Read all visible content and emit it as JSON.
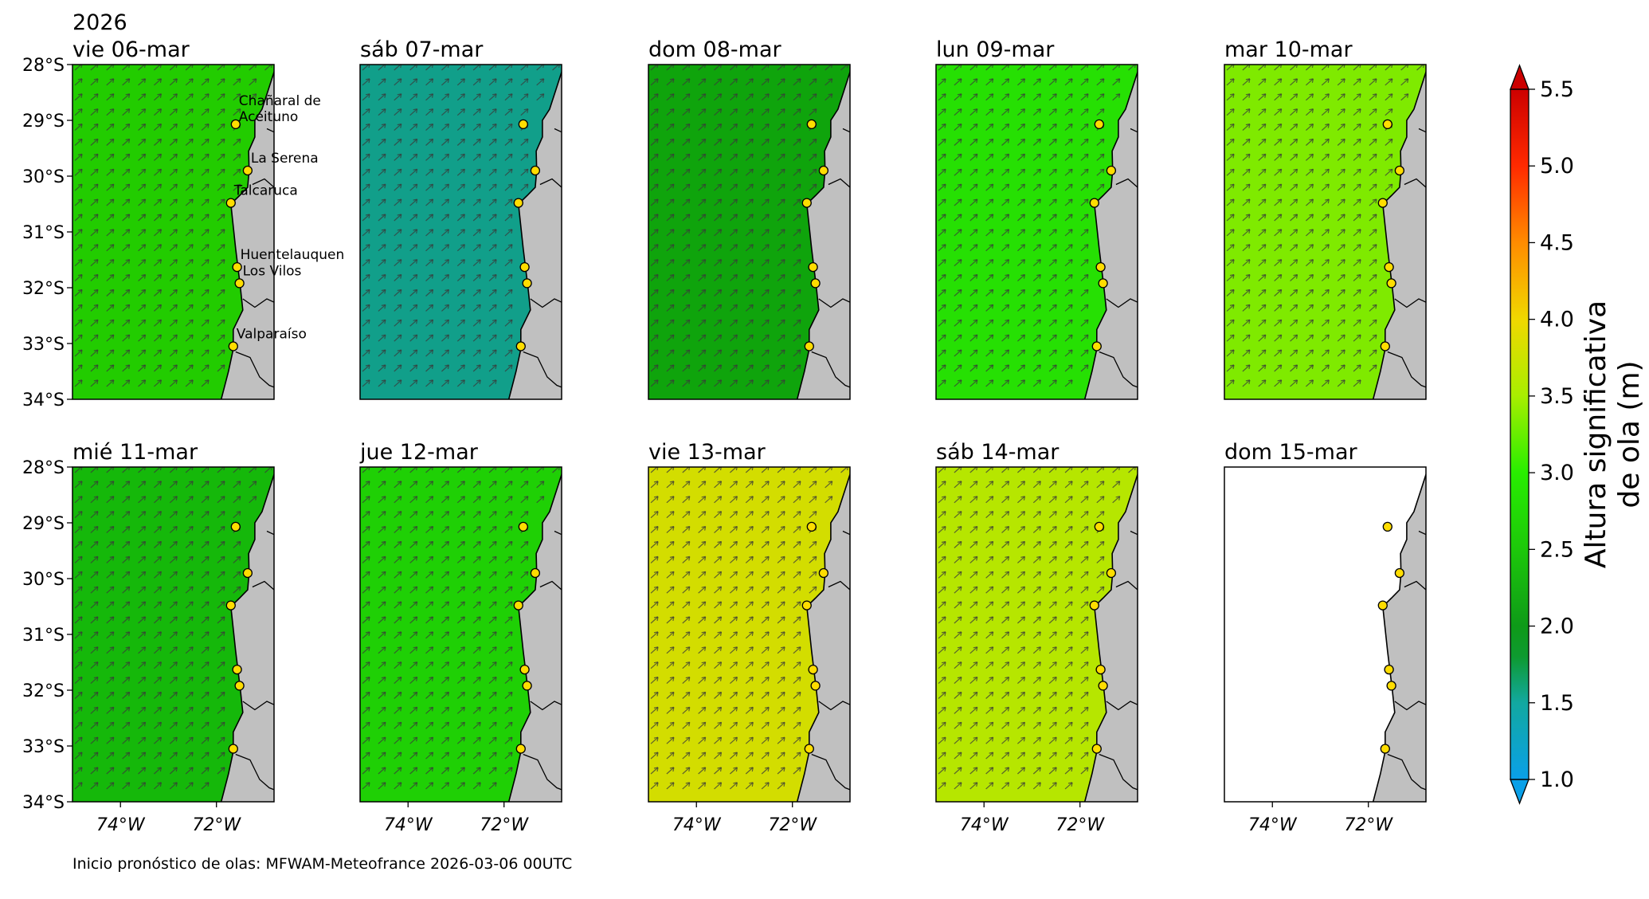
{
  "year_label": "2026",
  "panels": [
    {
      "label": "vie 06-mar",
      "wave_height_m": 2.85,
      "color": "#22cc00",
      "show_names": true
    },
    {
      "label": "sáb 07-mar",
      "wave_height_m": 1.7,
      "color": "#119f8a",
      "show_names": false
    },
    {
      "label": "dom 08-mar",
      "wave_height_m": 2.2,
      "color": "#0fa40c",
      "show_names": false
    },
    {
      "label": "lun 09-mar",
      "wave_height_m": 3.0,
      "color": "#26e003",
      "show_names": false
    },
    {
      "label": "mar 10-mar",
      "wave_height_m": 3.4,
      "color": "#7fea00",
      "show_names": false
    },
    {
      "label": "mié 11-mar",
      "wave_height_m": 2.5,
      "color": "#15b80a",
      "show_names": false
    },
    {
      "label": "jue 12-mar",
      "wave_height_m": 2.7,
      "color": "#1fd005",
      "show_names": false
    },
    {
      "label": "vie 13-mar",
      "wave_height_m": 3.75,
      "color": "#d3dd00",
      "show_names": false
    },
    {
      "label": "sáb 14-mar",
      "wave_height_m": 3.6,
      "color": "#b6e600",
      "show_names": false
    },
    {
      "label": "dom 15-mar",
      "wave_height_m": null,
      "color": "#ffffff",
      "show_names": false
    }
  ],
  "lat_ticks": [
    "28°S",
    "29°S",
    "30°S",
    "31°S",
    "32°S",
    "33°S",
    "34°S"
  ],
  "lon_ticks": [
    "74°W",
    "72°W"
  ],
  "locations": [
    {
      "name": "Chañaral de Aceituno",
      "lines": [
        "Chañaral de",
        "Aceituno"
      ],
      "lat": 29.07,
      "lon": 71.6
    },
    {
      "name": "La Serena",
      "lines": [
        "La Serena"
      ],
      "lat": 29.9,
      "lon": 71.35
    },
    {
      "name": "Talcaruca",
      "lines": [
        "Talcaruca"
      ],
      "lat": 30.48,
      "lon": 71.7
    },
    {
      "name": "Huentelauquen",
      "lines": [
        "Huentelauquen"
      ],
      "lat": 31.63,
      "lon": 71.57
    },
    {
      "name": "Los Vilos",
      "lines": [
        "Los Vilos"
      ],
      "lat": 31.92,
      "lon": 71.52
    },
    {
      "name": "Valparaíso",
      "lines": [
        "Valparaíso"
      ],
      "lat": 33.05,
      "lon": 71.65
    }
  ],
  "colorbar": {
    "label_line1": "Altura significativa",
    "label_line2": "de ola (m)",
    "ticks": [
      "1.0",
      "1.5",
      "2.0",
      "2.5",
      "3.0",
      "3.5",
      "4.0",
      "4.5",
      "5.0",
      "5.5"
    ],
    "min": 1.0,
    "max": 5.5,
    "stops": [
      {
        "v": 1.0,
        "c": "#0aa0e8"
      },
      {
        "v": 1.5,
        "c": "#12a8a0"
      },
      {
        "v": 1.8,
        "c": "#0e9a30"
      },
      {
        "v": 2.0,
        "c": "#0e9a18"
      },
      {
        "v": 2.5,
        "c": "#1dc80a"
      },
      {
        "v": 3.0,
        "c": "#28ee00"
      },
      {
        "v": 3.5,
        "c": "#a8ee00"
      },
      {
        "v": 4.0,
        "c": "#f0d800"
      },
      {
        "v": 4.5,
        "c": "#ff8c00"
      },
      {
        "v": 5.0,
        "c": "#ff2a00"
      },
      {
        "v": 5.5,
        "c": "#cc0000"
      }
    ]
  },
  "land_color": "#c0c0c0",
  "marker_color": "#ffdd00",
  "footer": "Inicio pronóstico de olas: MFWAM-Meteofrance 2026-03-06 00UTC"
}
